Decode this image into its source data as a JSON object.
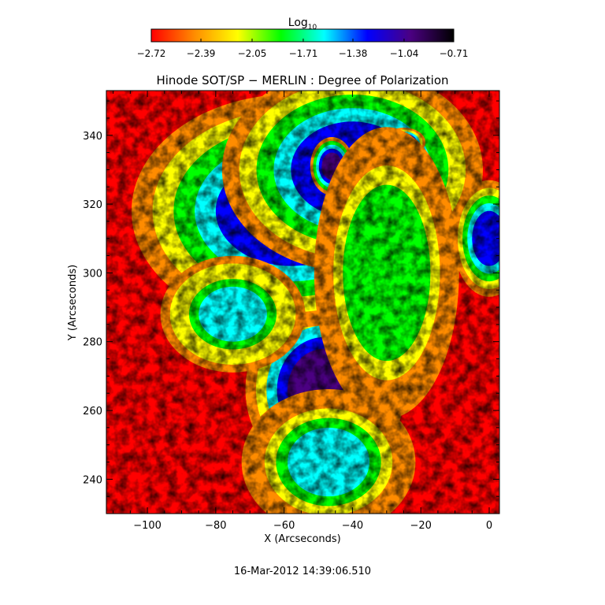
{
  "chart_data": {
    "type": "heatmap",
    "title": "Hinode SOT/SP − MERLIN : Degree of Polarization",
    "xlabel": "X (Arcseconds)",
    "ylabel": "Y (Arcseconds)",
    "xlim": [
      -112,
      3
    ],
    "ylim": [
      230,
      353
    ],
    "x_ticks": [
      -100,
      -80,
      -60,
      -40,
      -20,
      0
    ],
    "y_ticks": [
      240,
      260,
      280,
      300,
      320,
      340
    ],
    "x_tick_labels": [
      "−100",
      "−80",
      "−60",
      "−40",
      "−20",
      "0"
    ],
    "y_tick_labels": [
      "240",
      "260",
      "280",
      "300",
      "320",
      "340"
    ],
    "colorbar": {
      "label_base": "Log",
      "label_sub": "10",
      "range": [
        -2.72,
        -0.71
      ],
      "ticks": [
        -2.72,
        -2.39,
        -2.05,
        -1.71,
        -1.38,
        -1.04,
        -0.71
      ],
      "tick_labels": [
        "−2.72",
        "−2.39",
        "−2.05",
        "−1.71",
        "−1.38",
        "−1.04",
        "−0.71"
      ],
      "colormap": [
        "#ff0000",
        "#ff8c00",
        "#ffff00",
        "#00ff00",
        "#00ffff",
        "#0000ff",
        "#4b0082",
        "#000000"
      ]
    },
    "features": [
      {
        "type": "umbra",
        "x": -48,
        "y": 266,
        "rx": 6,
        "ry": 7,
        "value": -0.71
      },
      {
        "type": "penumbra",
        "x": -48,
        "y": 266,
        "rx": 11,
        "ry": 12,
        "value": -1.04
      },
      {
        "type": "plage",
        "x": -58,
        "y": 318,
        "rx": 22,
        "ry": 16,
        "value": -1.38
      },
      {
        "type": "plage",
        "x": -40,
        "y": 330,
        "rx": 18,
        "ry": 14,
        "value": -1.38
      },
      {
        "type": "pore",
        "x": -46,
        "y": 331,
        "rx": 3,
        "ry": 4,
        "value": -0.9
      },
      {
        "type": "pore",
        "x": -38,
        "y": 322,
        "rx": 2,
        "ry": 2,
        "value": -1.0
      },
      {
        "type": "pore",
        "x": -25,
        "y": 338,
        "rx": 3,
        "ry": 2,
        "value": -1.0
      },
      {
        "type": "network",
        "x": -75,
        "y": 288,
        "rx": 10,
        "ry": 8,
        "value": -1.6
      },
      {
        "type": "network",
        "x": -30,
        "y": 300,
        "rx": 10,
        "ry": 20,
        "value": -1.8
      },
      {
        "type": "network",
        "x": -47,
        "y": 245,
        "rx": 12,
        "ry": 10,
        "value": -1.7
      },
      {
        "type": "network",
        "x": 0,
        "y": 310,
        "rx": 5,
        "ry": 8,
        "value": -1.2
      }
    ],
    "background_value": -2.72
  },
  "footer": {
    "timestamp": "16-Mar-2012 14:39:06.510"
  }
}
